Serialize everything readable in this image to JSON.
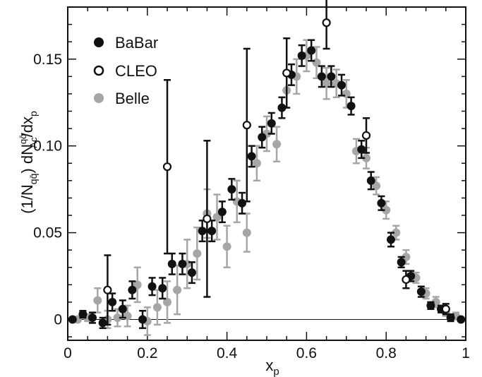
{
  "chart_data": {
    "type": "scatter",
    "xlabel_main": "x",
    "xlabel_sub": "p",
    "ylabel_parts": {
      "lead": "(1/N",
      "lead_sub": "qq̄",
      "mid": ") dN",
      "mid_sup": "qq̄",
      "mid_sub": "Λc",
      "tail": "/dx",
      "tail_sub": "p"
    },
    "xlim": [
      0,
      1
    ],
    "ylim": [
      -0.012,
      0.18
    ],
    "xticks": [
      0,
      0.2,
      0.4,
      0.6,
      0.8,
      1
    ],
    "xtick_labels": [
      "0",
      "0.2",
      "0.4",
      "0.6",
      "0.8",
      "1"
    ],
    "yticks": [
      0,
      0.05,
      0.1,
      0.15
    ],
    "ytick_labels": [
      "0",
      "0.05",
      "0.10",
      "0.15"
    ],
    "grid": false,
    "legend_position": "top-left",
    "series": [
      {
        "name": "BaBar",
        "marker": "filled-circle",
        "color": "#111111",
        "points": [
          {
            "x": 0.012,
            "y": 0.0,
            "err": 0.001
          },
          {
            "x": 0.038,
            "y": 0.003,
            "err": 0.002
          },
          {
            "x": 0.062,
            "y": 0.001,
            "err": 0.003
          },
          {
            "x": 0.088,
            "y": -0.002,
            "err": 0.003
          },
          {
            "x": 0.112,
            "y": 0.01,
            "err": 0.005
          },
          {
            "x": 0.138,
            "y": 0.006,
            "err": 0.005
          },
          {
            "x": 0.162,
            "y": 0.017,
            "err": 0.005
          },
          {
            "x": 0.188,
            "y": 0.0,
            "err": 0.005
          },
          {
            "x": 0.212,
            "y": 0.019,
            "err": 0.005
          },
          {
            "x": 0.238,
            "y": 0.018,
            "err": 0.006
          },
          {
            "x": 0.262,
            "y": 0.032,
            "err": 0.006
          },
          {
            "x": 0.288,
            "y": 0.032,
            "err": 0.006
          },
          {
            "x": 0.312,
            "y": 0.027,
            "err": 0.006
          },
          {
            "x": 0.338,
            "y": 0.051,
            "err": 0.006
          },
          {
            "x": 0.362,
            "y": 0.051,
            "err": 0.006
          },
          {
            "x": 0.388,
            "y": 0.062,
            "err": 0.006
          },
          {
            "x": 0.412,
            "y": 0.075,
            "err": 0.006
          },
          {
            "x": 0.438,
            "y": 0.067,
            "err": 0.006
          },
          {
            "x": 0.462,
            "y": 0.094,
            "err": 0.006
          },
          {
            "x": 0.488,
            "y": 0.105,
            "err": 0.006
          },
          {
            "x": 0.512,
            "y": 0.113,
            "err": 0.006
          },
          {
            "x": 0.538,
            "y": 0.122,
            "err": 0.006
          },
          {
            "x": 0.562,
            "y": 0.141,
            "err": 0.006
          },
          {
            "x": 0.588,
            "y": 0.152,
            "err": 0.006
          },
          {
            "x": 0.612,
            "y": 0.155,
            "err": 0.006
          },
          {
            "x": 0.638,
            "y": 0.14,
            "err": 0.006
          },
          {
            "x": 0.662,
            "y": 0.14,
            "err": 0.006
          },
          {
            "x": 0.688,
            "y": 0.135,
            "err": 0.006
          },
          {
            "x": 0.712,
            "y": 0.123,
            "err": 0.005
          },
          {
            "x": 0.738,
            "y": 0.098,
            "err": 0.005
          },
          {
            "x": 0.762,
            "y": 0.08,
            "err": 0.005
          },
          {
            "x": 0.788,
            "y": 0.067,
            "err": 0.004
          },
          {
            "x": 0.812,
            "y": 0.046,
            "err": 0.004
          },
          {
            "x": 0.838,
            "y": 0.033,
            "err": 0.003
          },
          {
            "x": 0.862,
            "y": 0.025,
            "err": 0.003
          },
          {
            "x": 0.888,
            "y": 0.016,
            "err": 0.003
          },
          {
            "x": 0.912,
            "y": 0.008,
            "err": 0.002
          },
          {
            "x": 0.938,
            "y": 0.006,
            "err": 0.002
          },
          {
            "x": 0.962,
            "y": 0.001,
            "err": 0.002
          },
          {
            "x": 0.988,
            "y": 0.0,
            "err": 0.001
          }
        ]
      },
      {
        "name": "CLEO",
        "marker": "open-circle",
        "color": "#111111",
        "points": [
          {
            "x": 0.1,
            "y": 0.017,
            "err": 0.02
          },
          {
            "x": 0.25,
            "y": 0.088,
            "err": 0.05
          },
          {
            "x": 0.35,
            "y": 0.058,
            "err": 0.045
          },
          {
            "x": 0.45,
            "y": 0.112,
            "err": 0.044
          },
          {
            "x": 0.55,
            "y": 0.142,
            "err": 0.02
          },
          {
            "x": 0.65,
            "y": 0.171,
            "err": 0.015
          },
          {
            "x": 0.75,
            "y": 0.106,
            "err": 0.01
          },
          {
            "x": 0.85,
            "y": 0.023,
            "err": 0.005
          },
          {
            "x": 0.95,
            "y": 0.006,
            "err": 0.003
          }
        ]
      },
      {
        "name": "Belle",
        "marker": "filled-circle",
        "color": "#a6a6a6",
        "points": [
          {
            "x": 0.025,
            "y": 0.0,
            "err": 0.001
          },
          {
            "x": 0.05,
            "y": 0.001,
            "err": 0.002
          },
          {
            "x": 0.075,
            "y": 0.011,
            "err": 0.007
          },
          {
            "x": 0.1,
            "y": 0.0,
            "err": 0.005
          },
          {
            "x": 0.125,
            "y": 0.001,
            "err": 0.005
          },
          {
            "x": 0.15,
            "y": 0.002,
            "err": 0.006
          },
          {
            "x": 0.175,
            "y": 0.02,
            "err": 0.01
          },
          {
            "x": 0.2,
            "y": -0.001,
            "err": 0.008
          },
          {
            "x": 0.225,
            "y": 0.007,
            "err": 0.01
          },
          {
            "x": 0.25,
            "y": 0.01,
            "err": 0.012
          },
          {
            "x": 0.275,
            "y": 0.017,
            "err": 0.014
          },
          {
            "x": 0.3,
            "y": 0.032,
            "err": 0.014
          },
          {
            "x": 0.325,
            "y": 0.038,
            "err": 0.015
          },
          {
            "x": 0.35,
            "y": 0.061,
            "err": 0.014
          },
          {
            "x": 0.375,
            "y": 0.059,
            "err": 0.013
          },
          {
            "x": 0.4,
            "y": 0.042,
            "err": 0.012
          },
          {
            "x": 0.425,
            "y": 0.068,
            "err": 0.012
          },
          {
            "x": 0.45,
            "y": 0.05,
            "err": 0.011
          },
          {
            "x": 0.475,
            "y": 0.09,
            "err": 0.01
          },
          {
            "x": 0.5,
            "y": 0.107,
            "err": 0.01
          },
          {
            "x": 0.525,
            "y": 0.101,
            "err": 0.01
          },
          {
            "x": 0.55,
            "y": 0.132,
            "err": 0.01
          },
          {
            "x": 0.575,
            "y": 0.14,
            "err": 0.01
          },
          {
            "x": 0.6,
            "y": 0.152,
            "err": 0.009
          },
          {
            "x": 0.625,
            "y": 0.148,
            "err": 0.009
          },
          {
            "x": 0.65,
            "y": 0.136,
            "err": 0.009
          },
          {
            "x": 0.675,
            "y": 0.136,
            "err": 0.008
          },
          {
            "x": 0.7,
            "y": 0.13,
            "err": 0.008
          },
          {
            "x": 0.725,
            "y": 0.097,
            "err": 0.007
          },
          {
            "x": 0.75,
            "y": 0.093,
            "err": 0.006
          },
          {
            "x": 0.775,
            "y": 0.077,
            "err": 0.005
          },
          {
            "x": 0.8,
            "y": 0.063,
            "err": 0.005
          },
          {
            "x": 0.825,
            "y": 0.05,
            "err": 0.004
          },
          {
            "x": 0.85,
            "y": 0.036,
            "err": 0.004
          },
          {
            "x": 0.875,
            "y": 0.024,
            "err": 0.003
          },
          {
            "x": 0.9,
            "y": 0.015,
            "err": 0.003
          },
          {
            "x": 0.925,
            "y": 0.01,
            "err": 0.003
          },
          {
            "x": 0.95,
            "y": 0.004,
            "err": 0.002
          },
          {
            "x": 0.975,
            "y": 0.002,
            "err": 0.002
          }
        ]
      }
    ]
  }
}
